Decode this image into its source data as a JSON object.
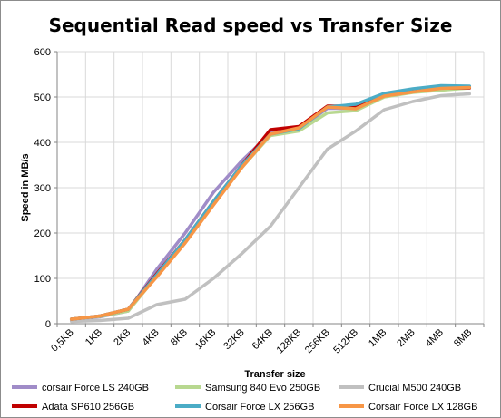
{
  "chart_data": {
    "type": "line",
    "title": "Sequential Read speed vs Transfer Size",
    "xlabel": "Transfer size",
    "ylabel": "Speed in MB/s",
    "ylim": [
      0,
      600
    ],
    "yticks": [
      "0",
      "100",
      "200",
      "300",
      "400",
      "500",
      "600"
    ],
    "grid": true,
    "legend_position": "bottom",
    "categories": [
      "0,5KB",
      "1KB",
      "2KB",
      "4KB",
      "8KB",
      "16KB",
      "32KB",
      "64KB",
      "128KB",
      "256KB",
      "512KB",
      "1MB",
      "2MB",
      "4MB",
      "8MB"
    ],
    "series": [
      {
        "name": "corsair Force LS 240GB",
        "color": "#a08cc8",
        "values": [
          9,
          15,
          28,
          120,
          200,
          290,
          360,
          420,
          430,
          475,
          475,
          505,
          515,
          520,
          520
        ]
      },
      {
        "name": "Samsung 840 Evo 250GB",
        "color": "#b8d890",
        "values": [
          10,
          16,
          28,
          105,
          185,
          265,
          345,
          415,
          425,
          465,
          470,
          500,
          510,
          515,
          520
        ]
      },
      {
        "name": "Crucial M500 240GB",
        "color": "#c0c0c0",
        "values": [
          5,
          7,
          12,
          42,
          54,
          100,
          155,
          215,
          300,
          385,
          425,
          472,
          490,
          503,
          507
        ]
      },
      {
        "name": "Adata SP610 256GB",
        "color": "#c00000",
        "values": [
          10,
          17,
          32,
          110,
          185,
          270,
          350,
          428,
          435,
          480,
          480,
          505,
          515,
          520,
          520
        ]
      },
      {
        "name": "Corsair Force LX 256GB",
        "color": "#4bacc6",
        "values": [
          10,
          17,
          32,
          108,
          185,
          270,
          350,
          418,
          430,
          478,
          484,
          508,
          518,
          525,
          524
        ]
      },
      {
        "name": "Corsair Force LX 128GB",
        "color": "#f79646",
        "values": [
          10,
          17,
          32,
          103,
          178,
          262,
          345,
          418,
          432,
          478,
          474,
          502,
          511,
          519,
          521
        ]
      }
    ]
  }
}
